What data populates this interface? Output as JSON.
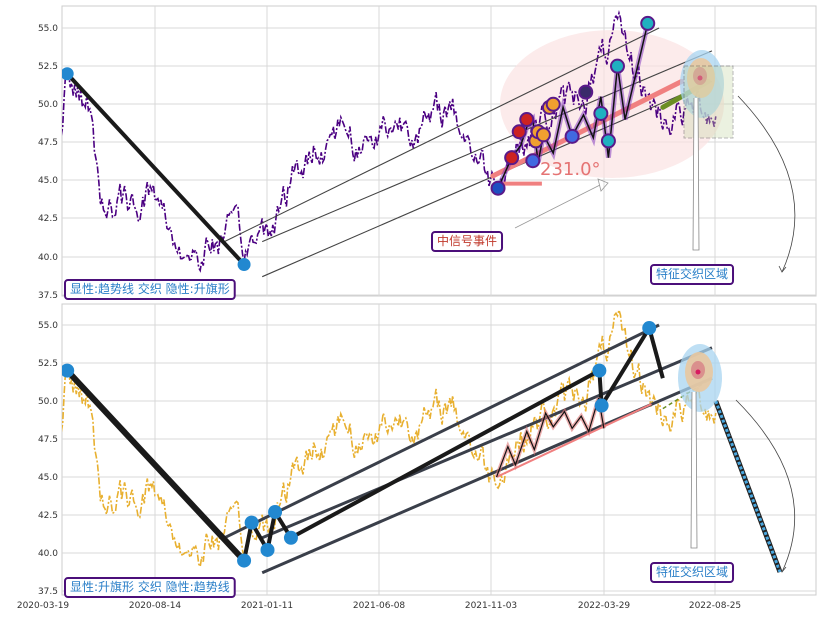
{
  "chart_data": [
    {
      "type": "line",
      "panel": "top",
      "y_ticks": [
        "37.5",
        "40.0",
        "42.5",
        "45.0",
        "47.5",
        "50.0",
        "52.5",
        "55.0"
      ],
      "ylim": [
        37.3,
        56.5
      ],
      "grid": true,
      "line_color": "#4b0082",
      "series_style": "dash-dot",
      "angle_label": "231.0°",
      "annotations": [
        {
          "key": "pattern",
          "text": "显性:趋势线 交织 隐性:升旗形"
        },
        {
          "key": "signal",
          "text": "中信号事件"
        },
        {
          "key": "zone",
          "text": "特征交织区域"
        }
      ],
      "key_points": [
        {
          "date": "2020-04-20",
          "y": 52.0
        },
        {
          "date": "2020-12-10",
          "y": 39.5
        },
        {
          "date": "2021-11-10",
          "y": 44.5
        },
        {
          "date": "2022-06-01",
          "y": 55.3
        }
      ]
    },
    {
      "type": "line",
      "panel": "bottom",
      "y_ticks": [
        "37.5",
        "40.0",
        "42.5",
        "45.0",
        "47.5",
        "50.0",
        "52.5",
        "55.0"
      ],
      "ylim": [
        37.3,
        56.5
      ],
      "x_ticks": [
        "2020-03-19",
        "2020-08-14",
        "2021-01-11",
        "2021-06-08",
        "2021-11-03",
        "2022-03-29",
        "2022-08-25"
      ],
      "grid": true,
      "line_color": "#e8b030",
      "series_style": "dash-dot",
      "annotations": [
        {
          "key": "pattern",
          "text": "显性:升旗形 交织 隐性:趋势线"
        },
        {
          "key": "zone",
          "text": "特征交织区域"
        }
      ],
      "key_points": [
        {
          "date": "2020-04-20",
          "y": 52.0
        },
        {
          "date": "2020-12-10",
          "y": 39.5
        },
        {
          "date": "2020-12-20",
          "y": 42.0
        },
        {
          "date": "2021-01-10",
          "y": 40.2
        },
        {
          "date": "2021-01-20",
          "y": 42.7
        },
        {
          "date": "2021-02-10",
          "y": 41.0
        },
        {
          "date": "2022-03-25",
          "y": 52.0
        },
        {
          "date": "2022-03-28",
          "y": 49.7
        },
        {
          "date": "2022-05-30",
          "y": 54.8
        }
      ]
    }
  ],
  "colors": {
    "grid": "#d8d8d8",
    "label_border": "#4b0f7a",
    "pattern_text": "#2a7fc8",
    "signal_text": "#c0392b",
    "salmon": "#f08080",
    "olive": "#6b8e23",
    "steel": "#3a3f4a",
    "marker_blue": "#2288d0"
  }
}
